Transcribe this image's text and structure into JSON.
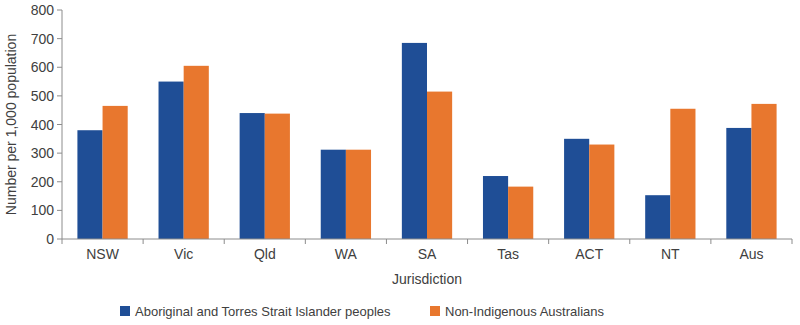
{
  "chart_data": {
    "type": "bar",
    "categories": [
      "NSW",
      "Vic",
      "Qld",
      "WA",
      "SA",
      "Tas",
      "ACT",
      "NT",
      "Aus"
    ],
    "series": [
      {
        "name": "Aboriginal and Torres Strait Islander peoples",
        "color": "#1f4e96",
        "values": [
          380,
          550,
          440,
          312,
          685,
          220,
          350,
          153,
          388
        ]
      },
      {
        "name": "Non-Indigenous Australians",
        "color": "#e8772e",
        "values": [
          465,
          605,
          438,
          312,
          515,
          183,
          330,
          455,
          472
        ]
      }
    ],
    "x_label": "Jurisdiction",
    "y_label": "Number per 1,000 population",
    "ylim": [
      0,
      800
    ],
    "yticks": [
      0,
      100,
      200,
      300,
      400,
      500,
      600,
      700,
      800
    ],
    "grid": false,
    "legend": "bottom"
  }
}
